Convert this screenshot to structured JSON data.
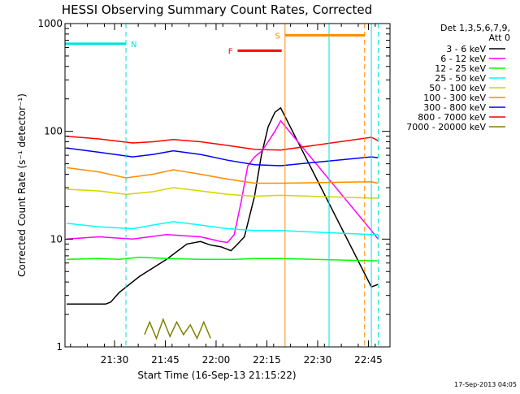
{
  "chart_data": {
    "type": "line",
    "title": "HESSI Observing Summary Count Rates, Corrected",
    "xlabel": "Start Time (16-Sep-13 21:15:22)",
    "ylabel": "Corrected Count Rate (s⁻¹ detector⁻¹)",
    "yscale": "log",
    "ylim": [
      1,
      1000
    ],
    "yticks": [
      {
        "value": 1,
        "label": "1"
      },
      {
        "value": 10,
        "label": "10"
      },
      {
        "value": 100,
        "label": "100"
      },
      {
        "value": 1000,
        "label": "1000"
      }
    ],
    "xlim_minutes": [
      0,
      96
    ],
    "xticks": [
      {
        "minute": 14.63,
        "label": "21:30"
      },
      {
        "minute": 29.63,
        "label": "21:45"
      },
      {
        "minute": 44.63,
        "label": "22:00"
      },
      {
        "minute": 59.63,
        "label": "22:15"
      },
      {
        "minute": 74.63,
        "label": "22:30"
      },
      {
        "minute": 89.63,
        "label": "22:45"
      }
    ],
    "grid": false,
    "legend_position": "right",
    "legend_header": [
      "Det 1,3,5,6,7,9,",
      "Att 0"
    ],
    "series": [
      {
        "name": "3 - 6 keV",
        "color": "#000000",
        "x": [
          0.5,
          12,
          13.5,
          16,
          22,
          30,
          36,
          40,
          43,
          46,
          49,
          51,
          53,
          56,
          58,
          60,
          62,
          63.7,
          90.5,
          92.5
        ],
        "y": [
          2.5,
          2.5,
          2.6,
          3.2,
          4.5,
          6.5,
          9,
          9.5,
          8.8,
          8.5,
          7.8,
          9,
          10.5,
          25,
          60,
          110,
          150,
          165,
          3.6,
          3.8
        ]
      },
      {
        "name": "6 - 12 keV",
        "color": "#ff00ff",
        "x": [
          0.5,
          10,
          20,
          30,
          40,
          46,
          48,
          50,
          52,
          54,
          56,
          58,
          60,
          62,
          63.7,
          90.5,
          92.5
        ],
        "y": [
          10,
          10.5,
          10,
          11,
          10.5,
          9.5,
          9.3,
          11,
          22,
          48,
          58,
          65,
          80,
          100,
          125,
          12,
          10
        ]
      },
      {
        "name": "12 - 25 keV",
        "color": "#00ff00",
        "x": [
          0.5,
          10,
          16,
          22,
          30,
          40,
          50,
          56,
          63.7,
          90.5,
          92.5
        ],
        "y": [
          6.5,
          6.6,
          6.5,
          6.8,
          6.6,
          6.5,
          6.5,
          6.6,
          6.6,
          6.3,
          6.3
        ]
      },
      {
        "name": "25 - 50 keV",
        "color": "#00ffff",
        "x": [
          0.5,
          10,
          20,
          26,
          32,
          40,
          48,
          56,
          63.7,
          90.5,
          92.5
        ],
        "y": [
          14,
          13,
          12.5,
          13.5,
          14.5,
          13.5,
          12.5,
          12,
          12,
          11,
          11
        ]
      },
      {
        "name": "50 - 100 keV",
        "color": "#d4d400",
        "x": [
          0.5,
          10,
          18,
          26,
          32,
          40,
          48,
          56,
          63.7,
          90.5,
          92.5
        ],
        "y": [
          29,
          28,
          26,
          27.5,
          30,
          28,
          26,
          25,
          25.5,
          24,
          24
        ]
      },
      {
        "name": "100 - 300 keV",
        "color": "#ff8c00",
        "x": [
          0.5,
          10,
          18,
          26,
          32,
          40,
          48,
          56,
          63.7,
          90.5,
          92.5
        ],
        "y": [
          46,
          42,
          37,
          40,
          44,
          40,
          36,
          33,
          33,
          34,
          33
        ]
      },
      {
        "name": "300 - 800 keV",
        "color": "#0000ff",
        "x": [
          0.5,
          10,
          20,
          26,
          32,
          40,
          48,
          56,
          63.7,
          90.5,
          92.5
        ],
        "y": [
          70,
          64,
          58,
          61,
          66,
          61,
          54,
          49,
          48,
          58,
          57
        ]
      },
      {
        "name": "800 - 7000 keV",
        "color": "#ff0000",
        "x": [
          0.5,
          10,
          20,
          26,
          32,
          40,
          48,
          56,
          63.7,
          90.5,
          92.5
        ],
        "y": [
          90,
          85,
          78,
          80,
          84,
          80,
          74,
          68,
          67,
          88,
          82
        ]
      },
      {
        "name": "7000 - 20000 keV",
        "color": "#808000",
        "x": [
          23.5,
          25,
          27,
          29,
          31,
          33,
          35,
          37,
          39,
          41,
          43
        ],
        "y": [
          1.3,
          1.7,
          1.2,
          1.8,
          1.25,
          1.7,
          1.3,
          1.6,
          1.2,
          1.7,
          1.2
        ]
      }
    ],
    "flags": [
      {
        "label": "N",
        "color": "#00e0e0",
        "bars": [
          [
            0,
            18
          ]
        ],
        "level": 650,
        "dashed_lines": [
          18,
          92.5
        ],
        "solid_lines": [
          0,
          78,
          90.5
        ]
      },
      {
        "label": "F",
        "color": "#ff0000",
        "bars": [
          [
            51,
            64
          ]
        ],
        "level": 560,
        "dashed_lines": [],
        "solid_lines": []
      },
      {
        "label": "S",
        "color": "#ff8c00",
        "bars": [
          [
            65,
            88.5
          ]
        ],
        "level": 780,
        "dashed_lines": [
          88.5
        ],
        "solid_lines": [
          65
        ]
      }
    ]
  },
  "footer": {
    "date_stamp": "17-Sep-2013 04:05"
  }
}
